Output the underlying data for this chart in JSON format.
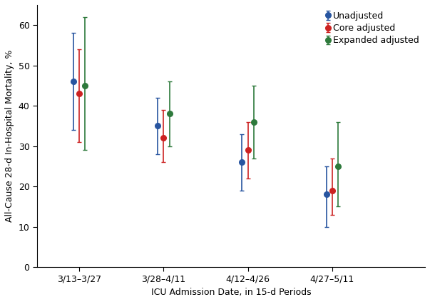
{
  "x_labels": [
    "3/13–3/27",
    "3/28–4/11",
    "4/12–4/26",
    "4/27–5/11"
  ],
  "x_positions": [
    0.5,
    1.5,
    2.5,
    3.5
  ],
  "series": [
    {
      "name": "Unadjusted",
      "color": "#2855a0",
      "marker": "o",
      "values": [
        46,
        35,
        26,
        18
      ],
      "ci_lower": [
        34,
        28,
        19,
        10
      ],
      "ci_upper": [
        58,
        42,
        33,
        25
      ]
    },
    {
      "name": "Core adjusted",
      "color": "#cc2222",
      "marker": "o",
      "values": [
        43,
        32,
        29,
        19
      ],
      "ci_lower": [
        31,
        26,
        22,
        13
      ],
      "ci_upper": [
        54,
        39,
        36,
        27
      ]
    },
    {
      "name": "Expanded adjusted",
      "color": "#2e7a3c",
      "marker": "o",
      "values": [
        45,
        38,
        36,
        25
      ],
      "ci_lower": [
        29,
        30,
        27,
        15
      ],
      "ci_upper": [
        62,
        46,
        45,
        36
      ]
    }
  ],
  "xlabel": "ICU Admission Date, in 15-d Periods",
  "ylabel": "All-Cause 28-d In-Hospital Mortality, %",
  "ylim": [
    0,
    65
  ],
  "xlim": [
    0,
    4.6
  ],
  "yticks": [
    0,
    10,
    20,
    30,
    40,
    50,
    60
  ],
  "offsets": [
    -0.07,
    0.0,
    0.07
  ],
  "background_color": "#ffffff",
  "marker_size": 5.5,
  "capsize": 2.5,
  "linewidth": 1.2,
  "ylabel_fontsize": 9,
  "xlabel_fontsize": 9,
  "tick_fontsize": 9,
  "legend_fontsize": 9
}
